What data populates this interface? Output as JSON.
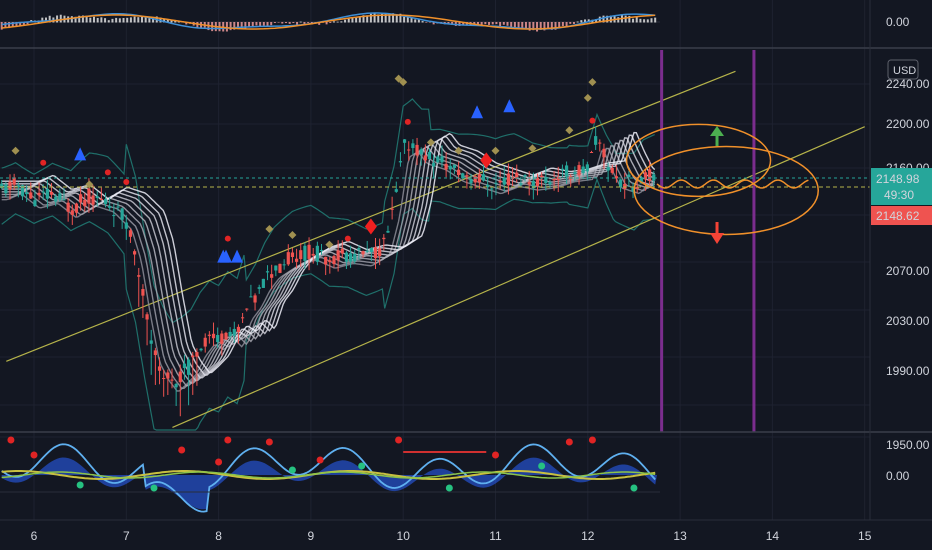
{
  "currency_label": "USD",
  "colors": {
    "background": "#131722",
    "grid": "#1e2230",
    "up": "#26a69a",
    "down": "#ef5350",
    "channel": "#b5b34a",
    "bollinger": "#1f6f6a",
    "ribbon": "#d8d8e0",
    "annotation_circle": "#f0902a",
    "arrow_up": "#4caf50",
    "arrow_down": "#f44336",
    "vertical_marker": "#7b2d8e",
    "price_tag_up": "#26a69a",
    "price_tag_down": "#ef5350"
  },
  "price_tags": {
    "current_price": "2148.98",
    "countdown": "49:30",
    "lower_price": "2148.62"
  },
  "macd_pane": {
    "zero_label": "0.00"
  },
  "oscillator_pane": {
    "zero_label": "0.00"
  },
  "chart_data": {
    "type": "candlestick",
    "title": "",
    "xlabel": "",
    "ylabel": "",
    "ylim": [
      1930,
      2225
    ],
    "x_ticks": [
      "6",
      "7",
      "8",
      "9",
      "10",
      "11",
      "12",
      "13",
      "14",
      "15"
    ],
    "y_ticks": [
      "1950.00",
      "1990.00",
      "2030.00",
      "2070.00",
      "2110.00",
      "2160.00",
      "2200.00",
      "2240.00"
    ],
    "vertical_markers_x": [
      12.8,
      13.8
    ],
    "channel_lines": [
      {
        "name": "",
        "from": [
          5.7,
          1993
        ],
        "to": [
          13.6,
          2234
        ]
      },
      {
        "name": "",
        "from": [
          7.5,
          1938
        ],
        "to": [
          15,
          2188
        ]
      }
    ],
    "price_path": [
      [
        5.65,
        2135
      ],
      [
        5.8,
        2140
      ],
      [
        6.0,
        2128
      ],
      [
        6.2,
        2132
      ],
      [
        6.4,
        2120
      ],
      [
        6.6,
        2130
      ],
      [
        6.8,
        2125
      ],
      [
        7.0,
        2110
      ],
      [
        7.1,
        2085
      ],
      [
        7.2,
        2040
      ],
      [
        7.3,
        2000
      ],
      [
        7.4,
        1985
      ],
      [
        7.5,
        1975
      ],
      [
        7.6,
        1982
      ],
      [
        7.7,
        1990
      ],
      [
        7.8,
        2005
      ],
      [
        7.9,
        2015
      ],
      [
        8.0,
        2010
      ],
      [
        8.1,
        2020
      ],
      [
        8.2,
        2012
      ],
      [
        8.3,
        2035
      ],
      [
        8.4,
        2045
      ],
      [
        8.5,
        2060
      ],
      [
        8.6,
        2070
      ],
      [
        8.8,
        2080
      ],
      [
        9.0,
        2085
      ],
      [
        9.2,
        2078
      ],
      [
        9.4,
        2082
      ],
      [
        9.6,
        2080
      ],
      [
        9.8,
        2090
      ],
      [
        9.9,
        2120
      ],
      [
        10.0,
        2170
      ],
      [
        10.1,
        2175
      ],
      [
        10.2,
        2165
      ],
      [
        10.4,
        2160
      ],
      [
        10.6,
        2150
      ],
      [
        10.8,
        2145
      ],
      [
        11.0,
        2140
      ],
      [
        11.2,
        2146
      ],
      [
        11.4,
        2143
      ],
      [
        11.6,
        2145
      ],
      [
        11.8,
        2150
      ],
      [
        12.0,
        2152
      ],
      [
        12.1,
        2178
      ],
      [
        12.2,
        2160
      ],
      [
        12.3,
        2145
      ],
      [
        12.5,
        2140
      ],
      [
        12.6,
        2148
      ],
      [
        12.75,
        2149
      ]
    ],
    "projection": {
      "center_level": 2148.98,
      "ellipse_upper": {
        "x": [
          12.5,
          13.9
        ],
        "y": [
          2120,
          2198
        ]
      },
      "ellipse_lower": {
        "x": [
          12.5,
          14.5
        ],
        "y": [
          2090,
          2175
        ]
      }
    },
    "current_price": 2148.98
  }
}
